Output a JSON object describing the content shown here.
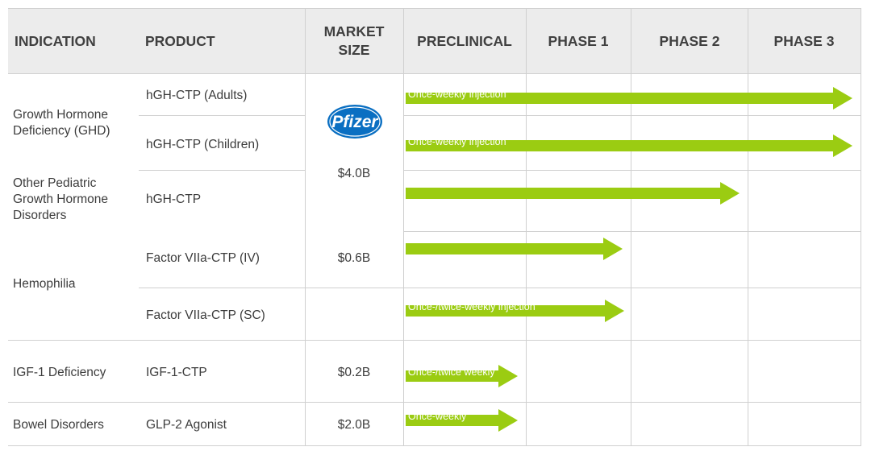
{
  "columns": {
    "indication": "INDICATION",
    "product": "PRODUCT",
    "market_size": [
      "MARKET",
      "SIZE"
    ],
    "phases": [
      "PRECLINICAL",
      "PHASE 1",
      "PHASE 2",
      "PHASE 3"
    ]
  },
  "indications": [
    {
      "lines": [
        "Growth Hormone",
        "Deficiency (GHD)"
      ]
    },
    {
      "lines": [
        "Other Pediatric",
        "Growth Hormone",
        "Disorders"
      ]
    },
    {
      "lines": [
        "Hemophilia"
      ]
    },
    {
      "lines": [
        "IGF-1 Deficiency"
      ]
    },
    {
      "lines": [
        "Bowel Disorders"
      ]
    }
  ],
  "market_sizes": [
    "$4.0B",
    "$0.6B",
    "$0.2B",
    "$2.0B"
  ],
  "partner_logo": {
    "name": "pfizer-logo",
    "text": "Pfizer",
    "color": "#0a6fc2"
  },
  "colors": {
    "arrow": "#9bcc12",
    "header_bg": "#ececec",
    "grid": "#d0d0d0"
  },
  "chart_data": {
    "type": "bar",
    "x_axis": [
      "PRECLINICAL",
      "PHASE 1",
      "PHASE 2",
      "PHASE 3"
    ],
    "series": [
      {
        "product": "hGH-CTP (Adults)",
        "reached_phase": "PHASE 3",
        "progress": 4.0,
        "label": "Once-weekly injection"
      },
      {
        "product": "hGH-CTP (Children)",
        "reached_phase": "PHASE 3",
        "progress": 4.0,
        "label": "Once-weekly injection"
      },
      {
        "product": "hGH-CTP",
        "reached_phase": "PHASE 2",
        "progress": 3.0,
        "label": ""
      },
      {
        "product": "Factor VIIa-CTP (IV)",
        "reached_phase": "PHASE 1",
        "progress": 2.0,
        "label": ""
      },
      {
        "product": "Factor VIIa-CTP (SC)",
        "reached_phase": "PHASE 1",
        "progress": 2.0,
        "label": "Once-/twice-weekly injection"
      },
      {
        "product": "IGF-1-CTP",
        "reached_phase": "PRECLINICAL",
        "progress": 1.0,
        "label": "Once-/twice weekly"
      },
      {
        "product": "GLP-2 Agonist",
        "reached_phase": "PRECLINICAL",
        "progress": 1.0,
        "label": "Once-weekly"
      }
    ]
  }
}
